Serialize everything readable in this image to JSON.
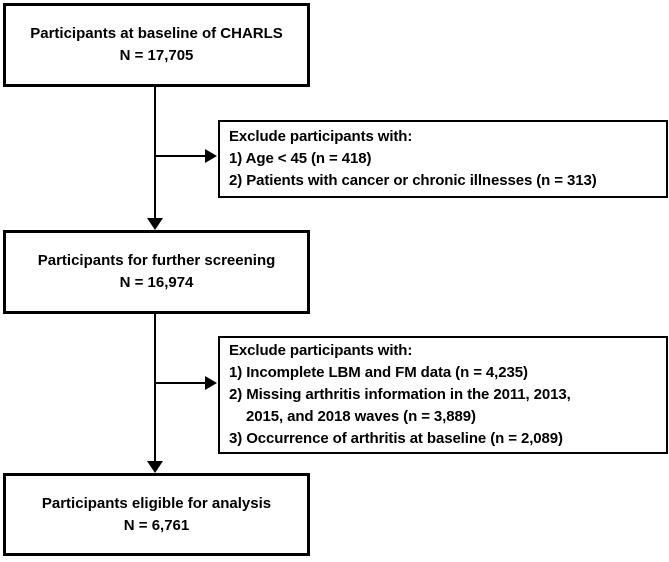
{
  "flowchart": {
    "colors": {
      "border": "#000000",
      "background": "#ffffff",
      "text": "#000000"
    },
    "baseline_box": {
      "line1": "Participants at baseline of CHARLS",
      "line2": "N = 17,705"
    },
    "exclusion1_box": {
      "title": "Exclude participants with:",
      "item1": "1) Age < 45 (n = 418)",
      "item2": "2) Patients with cancer or chronic illnesses (n = 313)"
    },
    "screening_box": {
      "line1": "Participants for further screening",
      "line2": "N = 16,974"
    },
    "exclusion2_box": {
      "title": "Exclude participants with:",
      "item1": "1) Incomplete LBM and FM data (n = 4,235)",
      "item2": "2) Missing arthritis information in the 2011, 2013,",
      "item2_cont": "2015, and 2018 waves (n = 3,889)",
      "item3": "3) Occurrence of arthritis at baseline (n = 2,089)"
    },
    "eligible_box": {
      "line1": "Participants eligible for analysis",
      "line2": "N = 6,761"
    }
  }
}
